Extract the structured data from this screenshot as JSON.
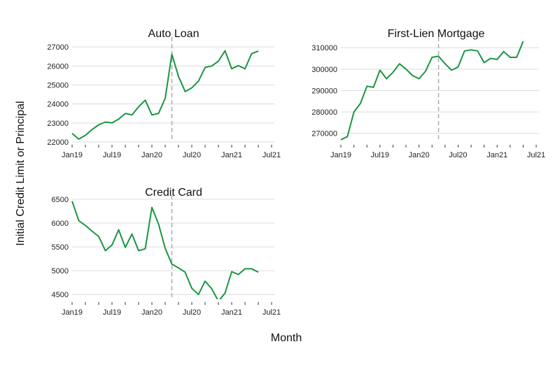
{
  "chart_data": {
    "type": "line",
    "xlabel": "Month",
    "ylabel": "Initial Credit Limit or Principal",
    "line_color": "#1a9641",
    "reference_line_color": "#aaaaaa",
    "x_ticks": [
      "Jan19",
      "Jul19",
      "Jan20",
      "Jul20",
      "Jan21",
      "Jul21"
    ],
    "reference_month": "2020-04",
    "grid": "horizontal",
    "panels": [
      {
        "title": "Auto Loan",
        "ylim": [
          22000,
          27300
        ],
        "yticks": [
          22000,
          23000,
          24000,
          25000,
          26000,
          27000
        ],
        "x": [
          "2019-01",
          "2019-02",
          "2019-03",
          "2019-04",
          "2019-05",
          "2019-06",
          "2019-07",
          "2019-08",
          "2019-09",
          "2019-10",
          "2019-11",
          "2019-12",
          "2020-01",
          "2020-02",
          "2020-03",
          "2020-04",
          "2020-05",
          "2020-06",
          "2020-07",
          "2020-08",
          "2020-09",
          "2020-10",
          "2020-11",
          "2020-12",
          "2021-01",
          "2021-02",
          "2021-03",
          "2021-04",
          "2021-05"
        ],
        "values": [
          22450,
          22150,
          22350,
          22650,
          22900,
          23050,
          23000,
          23200,
          23500,
          23420,
          23850,
          24200,
          23420,
          23500,
          24300,
          26620,
          25450,
          24650,
          24850,
          25200,
          25920,
          26000,
          26250,
          26800,
          25850,
          26020,
          25850,
          26650,
          26780
        ]
      },
      {
        "title": "First-Lien Mortgage",
        "ylim": [
          266000,
          313000
        ],
        "yticks": [
          270000,
          280000,
          290000,
          300000,
          310000
        ],
        "x": [
          "2019-01",
          "2019-02",
          "2019-03",
          "2019-04",
          "2019-05",
          "2019-06",
          "2019-07",
          "2019-08",
          "2019-09",
          "2019-10",
          "2019-11",
          "2019-12",
          "2020-01",
          "2020-02",
          "2020-03",
          "2020-04",
          "2020-05",
          "2020-06",
          "2020-07",
          "2020-08",
          "2020-09",
          "2020-10",
          "2020-11",
          "2020-12",
          "2021-01",
          "2021-02",
          "2021-03",
          "2021-04",
          "2021-05"
        ],
        "values": [
          267000,
          268500,
          280000,
          284000,
          292000,
          291500,
          299500,
          295500,
          298500,
          302500,
          300000,
          297000,
          295500,
          299000,
          305500,
          306000,
          302500,
          299500,
          301000,
          308500,
          309000,
          308500,
          303000,
          305000,
          304500,
          308200,
          305500,
          305500,
          313000
        ]
      },
      {
        "title": "Credit Card",
        "ylim": [
          4400,
          6500
        ],
        "yticks": [
          4500,
          5000,
          5500,
          6000,
          6500
        ],
        "x": [
          "2019-01",
          "2019-02",
          "2019-03",
          "2019-04",
          "2019-05",
          "2019-06",
          "2019-07",
          "2019-08",
          "2019-09",
          "2019-10",
          "2019-11",
          "2019-12",
          "2020-01",
          "2020-02",
          "2020-03",
          "2020-04",
          "2020-05",
          "2020-06",
          "2020-07",
          "2020-08",
          "2020-09",
          "2020-10",
          "2020-11",
          "2020-12",
          "2021-01",
          "2021-02",
          "2021-03",
          "2021-04",
          "2021-05"
        ],
        "values": [
          6460,
          6050,
          5950,
          5830,
          5720,
          5420,
          5540,
          5860,
          5490,
          5770,
          5420,
          5460,
          6330,
          5980,
          5470,
          5140,
          5060,
          4970,
          4630,
          4500,
          4780,
          4620,
          4360,
          4530,
          4980,
          4920,
          5040,
          5040,
          4970
        ]
      }
    ]
  }
}
